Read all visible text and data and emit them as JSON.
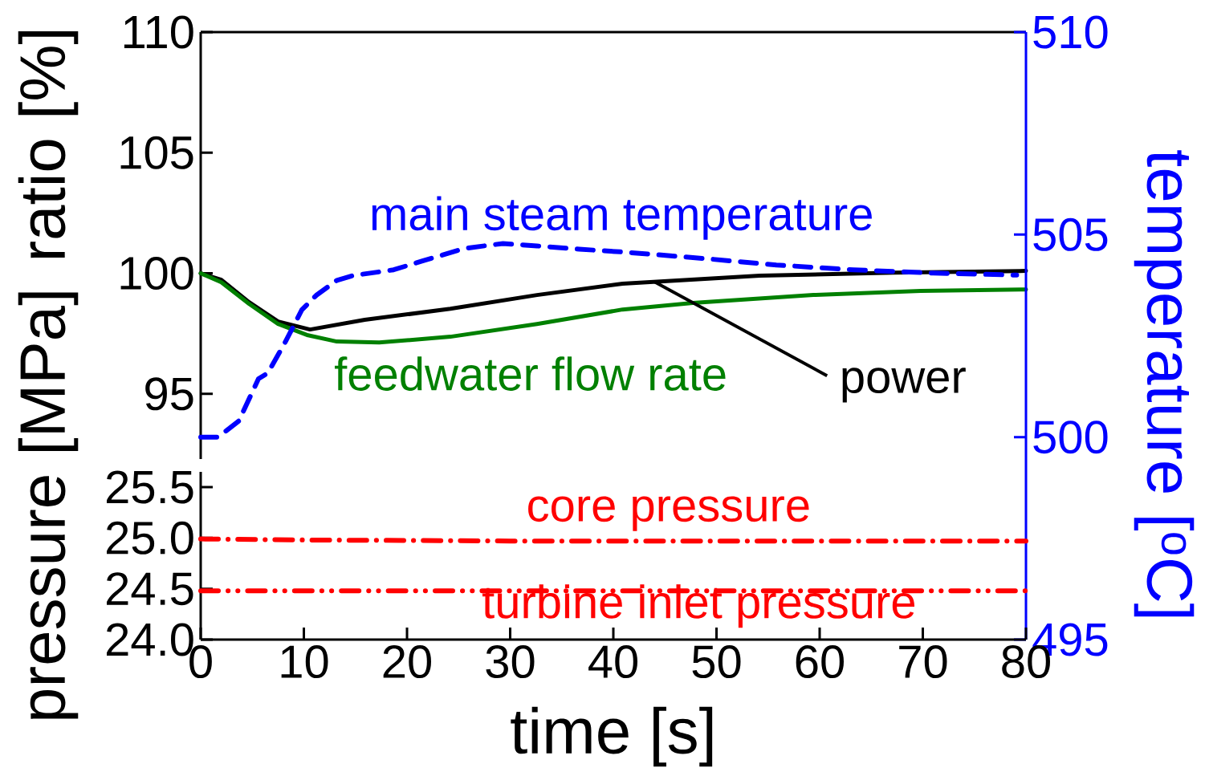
{
  "chart_data": [
    {
      "type": "line",
      "ylabel": "ratio [%]",
      "y2label": "temperature [$^{o}$C]",
      "xlim": [
        0,
        80
      ],
      "tick_labels": "y",
      "ylim": [
        92.3,
        110
      ],
      "yticks": [
        95,
        100,
        105,
        110
      ],
      "y2lim": [
        495,
        510
      ],
      "y2ticks": [
        495,
        500,
        505,
        510
      ],
      "series": [
        {
          "name": "power",
          "color": "#000000",
          "x": [
            0,
            2,
            4.7,
            7.5,
            10.6,
            15.9,
            24.2,
            32.6,
            40.9,
            54.2,
            67.2,
            80
          ],
          "values": [
            100,
            99.73,
            98.8,
            98.0,
            97.67,
            98.07,
            98.53,
            99.1,
            99.57,
            99.9,
            100.03,
            100.1
          ]
        },
        {
          "name": "feedwater flow rate",
          "color": "#008000",
          "x": [
            0,
            2,
            4.7,
            7.5,
            10.4,
            13.2,
            17.3,
            24.2,
            32.6,
            40.9,
            47.7,
            59.4,
            69.8,
            80
          ],
          "values": [
            100,
            99.63,
            98.73,
            97.9,
            97.43,
            97.17,
            97.13,
            97.37,
            97.9,
            98.5,
            98.77,
            99.1,
            99.27,
            99.33
          ]
        },
        {
          "name": "main steam temperature",
          "color": "#0000ff",
          "axis": "y2",
          "line_style": "dashed",
          "x": [
            0,
            1.7,
            3.7,
            5.6,
            6.5,
            8.1,
            9.8,
            11.2,
            13.2,
            14.8,
            18.7,
            21.5,
            25.6,
            29.3,
            32.6,
            36.7,
            40.9,
            48.8,
            55.8,
            63.3,
            71,
            79.1
          ],
          "values": [
            500.0,
            500.0,
            500.4,
            501.44,
            501.58,
            502.3,
            503.14,
            503.5,
            503.87,
            503.99,
            504.13,
            504.35,
            504.66,
            504.78,
            504.72,
            504.64,
            504.57,
            504.41,
            504.25,
            504.13,
            504.05,
            504.0
          ]
        }
      ]
    },
    {
      "type": "line",
      "xlabel": "time [s]",
      "ylabel": "pressure [MPa]",
      "xlim": [
        0,
        80
      ],
      "xticks": [
        0,
        10,
        20,
        30,
        40,
        50,
        60,
        70,
        80
      ],
      "ylim": [
        24.0,
        25.65
      ],
      "yticks": [
        {
          "value": 24.0,
          "label": "24.0"
        },
        {
          "value": 24.5,
          "label": "24.5"
        },
        {
          "value": 25.0,
          "label": "25.0"
        },
        {
          "value": 25.5,
          "label": "25.5"
        }
      ],
      "series": [
        {
          "name": "core pressure",
          "color": "#ff0000",
          "line_style": "dashdot",
          "x": [
            0,
            10,
            30,
            80
          ],
          "values": [
            24.99,
            24.98,
            24.97,
            24.97
          ]
        },
        {
          "name": "turbine inlet pressure",
          "color": "#ff0000",
          "line_style": "dashdotdot",
          "x": [
            0,
            80
          ],
          "values": [
            24.48,
            24.48
          ]
        }
      ]
    }
  ]
}
